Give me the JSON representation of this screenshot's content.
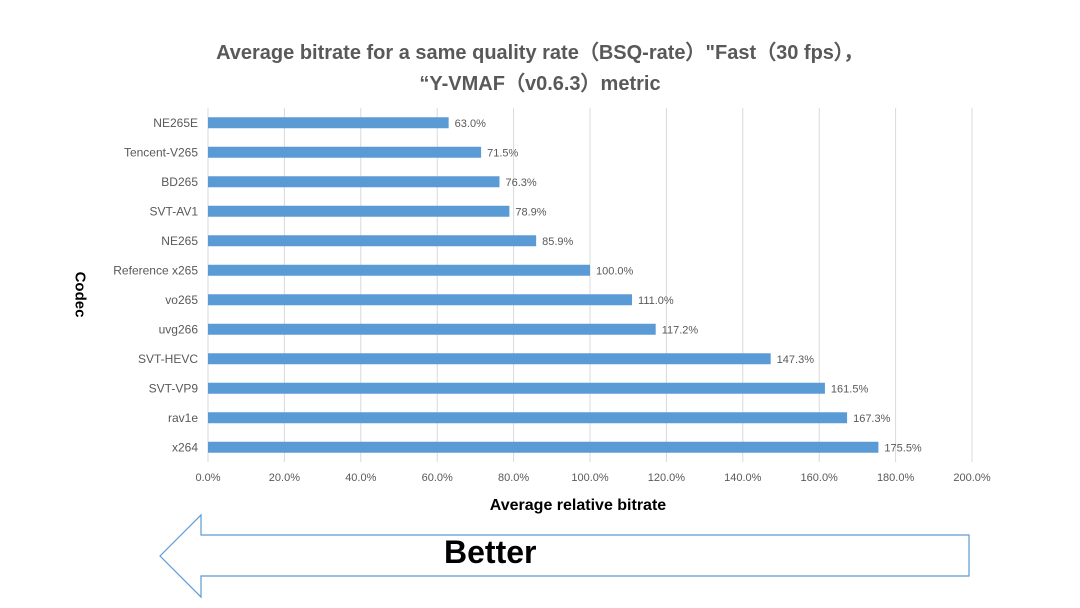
{
  "title_line1": "Average bitrate for a same quality rate（BSQ-rate）\"Fast（30 fps），",
  "title_line2": "“Y-VMAF（v0.6.3）metric",
  "ylabel": "Codec",
  "xlabel": "Average relative bitrate",
  "arrow_label": "Better",
  "colors": {
    "bar": "#5b9bd5",
    "grid": "#d9d9d9",
    "text": "#595959"
  },
  "chart_data": {
    "type": "bar",
    "orientation": "horizontal",
    "title": "Average bitrate for a same quality rate（BSQ-rate）\"Fast（30 fps），“Y-VMAF（v0.6.3）metric",
    "xlabel": "Average relative bitrate",
    "ylabel": "Codec",
    "categories": [
      "NE265E",
      "Tencent-V265",
      "BD265",
      "SVT-AV1",
      "NE265",
      "Reference x265",
      "vo265",
      "uvg266",
      "SVT-HEVC",
      "SVT-VP9",
      "rav1e",
      "x264"
    ],
    "values": [
      63.0,
      71.5,
      76.3,
      78.9,
      85.9,
      100.0,
      111.0,
      117.2,
      147.3,
      161.5,
      167.3,
      175.5
    ],
    "value_labels": [
      "63.0%",
      "71.5%",
      "76.3%",
      "78.9%",
      "85.9%",
      "100.0%",
      "111.0%",
      "117.2%",
      "147.3%",
      "161.5%",
      "167.3%",
      "175.5%"
    ],
    "xlim": [
      0,
      200
    ],
    "xticks": [
      "0.0%",
      "20.0%",
      "40.0%",
      "60.0%",
      "80.0%",
      "100.0%",
      "120.0%",
      "140.0%",
      "160.0%",
      "180.0%",
      "200.0%"
    ],
    "grid": true
  }
}
